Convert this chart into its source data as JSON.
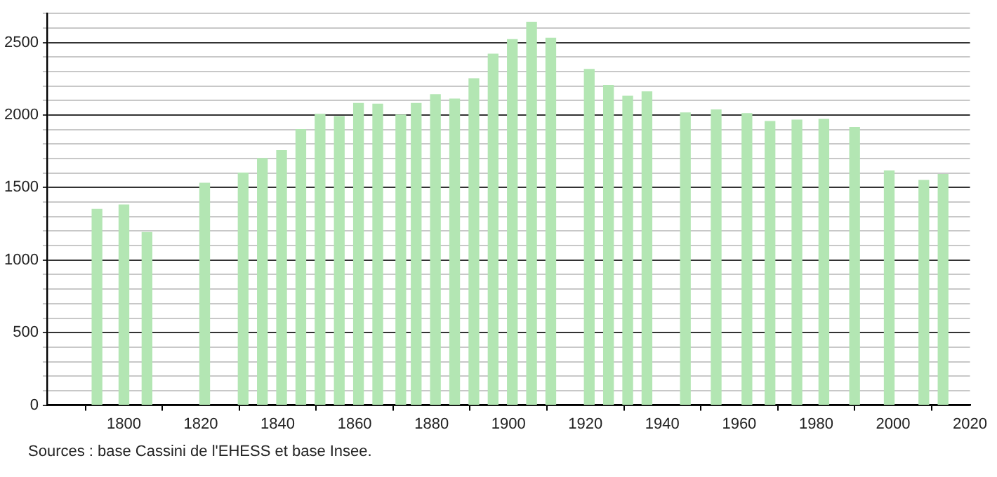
{
  "chart_data": {
    "type": "bar",
    "x": [
      1793,
      1800,
      1806,
      1821,
      1831,
      1836,
      1841,
      1846,
      1851,
      1856,
      1861,
      1866,
      1872,
      1876,
      1881,
      1886,
      1891,
      1896,
      1901,
      1906,
      1911,
      1921,
      1926,
      1931,
      1936,
      1946,
      1954,
      1962,
      1968,
      1975,
      1982,
      1990,
      1999,
      2008,
      2013
    ],
    "series": [
      {
        "color": "#b3e6b3",
        "values": [
          1350,
          1380,
          1190,
          1530,
          1600,
          1700,
          1755,
          1900,
          2005,
          1990,
          2080,
          2075,
          2000,
          2080,
          2140,
          2110,
          2250,
          2420,
          2520,
          2640,
          2530,
          2315,
          2205,
          2130,
          2160,
          2015,
          2035,
          2010,
          1955,
          1965,
          1970,
          1915,
          1615,
          1550,
          1590
        ]
      }
    ],
    "xlim": [
      1780,
      2020
    ],
    "xticks": [
      1800,
      1820,
      1840,
      1860,
      1880,
      1900,
      1920,
      1940,
      1960,
      1980,
      2000,
      2020
    ],
    "ylim": [
      0,
      2700
    ],
    "yticks": [
      0,
      {
        "value": 100,
        "label": null
      },
      {
        "value": 200,
        "label": null
      },
      {
        "value": 300,
        "label": null
      },
      {
        "value": 400,
        "label": null
      },
      500,
      {
        "value": 600,
        "label": null
      },
      {
        "value": 700,
        "label": null
      },
      {
        "value": 800,
        "label": null
      },
      {
        "value": 900,
        "label": null
      },
      1000,
      {
        "value": 1100,
        "label": null
      },
      {
        "value": 1200,
        "label": null
      },
      {
        "value": 1300,
        "label": null
      },
      {
        "value": 1400,
        "label": null
      },
      1500,
      {
        "value": 1600,
        "label": null
      },
      {
        "value": 1700,
        "label": null
      },
      {
        "value": 1800,
        "label": null
      },
      {
        "value": 1900,
        "label": null
      },
      2000,
      {
        "value": 2100,
        "label": null
      },
      {
        "value": 2200,
        "label": null
      },
      {
        "value": 2300,
        "label": null
      },
      {
        "value": 2400,
        "label": null
      },
      2500,
      {
        "value": 2600,
        "label": null
      },
      {
        "value": 2700,
        "label": null
      }
    ],
    "grid": "y",
    "annotations": [
      "Sources : base Cassini de l'EHESS et base Insee."
    ]
  }
}
